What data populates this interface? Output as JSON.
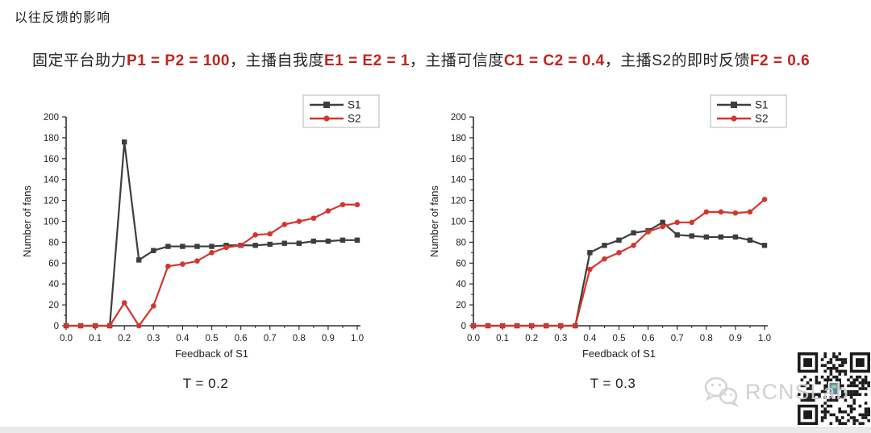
{
  "page": {
    "title": "以往反馈的影响"
  },
  "parameters": {
    "segments": [
      {
        "text": "固定平台助力"
      },
      {
        "text": "P1 = P2 = 100"
      },
      {
        "text": "，主播自我度"
      },
      {
        "text": "E1 = E2 = 1"
      },
      {
        "text": "，主播可信度"
      },
      {
        "text": "C1 = C2 = 0.4"
      },
      {
        "text": "，主播S2的即时反馈"
      },
      {
        "text": "F2 = 0.6"
      }
    ]
  },
  "chart_data": [
    {
      "type": "line",
      "caption": "T = 0.2",
      "xlabel": "Feedback of S1",
      "ylabel": "Number of fans",
      "xlim": [
        0,
        1
      ],
      "ylim": [
        0,
        200
      ],
      "grid": false,
      "legend_position": "top-right",
      "xticks": [
        0.0,
        0.1,
        0.2,
        0.3,
        0.4,
        0.5,
        0.6,
        0.7,
        0.8,
        0.9,
        1.0
      ],
      "xtick_labels": [
        "0.0",
        "0.1",
        "0.2",
        "0.3",
        "0.4",
        "0.5",
        "0.6",
        "0.7",
        "0.8",
        "0.9",
        "1.0"
      ],
      "yticks": [
        0,
        20,
        40,
        60,
        80,
        100,
        120,
        140,
        160,
        180,
        200
      ],
      "x": [
        0.0,
        0.05,
        0.1,
        0.15,
        0.2,
        0.25,
        0.3,
        0.35,
        0.4,
        0.45,
        0.5,
        0.55,
        0.6,
        0.65,
        0.7,
        0.75,
        0.8,
        0.85,
        0.9,
        0.95,
        1.0
      ],
      "series": [
        {
          "name": "S1",
          "color": "#3d3d3d",
          "marker": "square",
          "values": [
            0,
            0,
            0,
            0,
            176,
            63,
            72,
            76,
            76,
            76,
            76,
            77,
            77,
            77,
            78,
            79,
            79,
            81,
            81,
            82,
            82
          ]
        },
        {
          "name": "S2",
          "color": "#d3362d",
          "marker": "circle",
          "values": [
            0,
            0,
            0,
            0,
            22,
            0,
            19,
            57,
            59,
            62,
            70,
            75,
            77,
            87,
            88,
            97,
            100,
            103,
            110,
            116,
            116
          ]
        }
      ]
    },
    {
      "type": "line",
      "caption": "T = 0.3",
      "xlabel": "Feedback of S1",
      "ylabel": "Number of fans",
      "xlim": [
        0,
        1
      ],
      "ylim": [
        0,
        200
      ],
      "grid": false,
      "legend_position": "top-right",
      "xticks": [
        0.0,
        0.1,
        0.2,
        0.3,
        0.4,
        0.5,
        0.6,
        0.7,
        0.8,
        0.9,
        1.0
      ],
      "xtick_labels": [
        "0.0",
        "0.1",
        "0.2",
        "0.3",
        "0.4",
        "0.5",
        "0.6",
        "0.7",
        "0.8",
        "0.9",
        "1.0"
      ],
      "yticks": [
        0,
        20,
        40,
        60,
        80,
        100,
        120,
        140,
        160,
        180,
        200
      ],
      "x": [
        0.0,
        0.05,
        0.1,
        0.15,
        0.2,
        0.25,
        0.3,
        0.35,
        0.4,
        0.45,
        0.5,
        0.55,
        0.6,
        0.65,
        0.7,
        0.75,
        0.8,
        0.85,
        0.9,
        0.95,
        1.0
      ],
      "series": [
        {
          "name": "S1",
          "color": "#3d3d3d",
          "marker": "square",
          "values": [
            0,
            0,
            0,
            0,
            0,
            0,
            0,
            0,
            70,
            77,
            82,
            89,
            91,
            99,
            87,
            86,
            85,
            85,
            85,
            82,
            77
          ]
        },
        {
          "name": "S2",
          "color": "#d3362d",
          "marker": "circle",
          "values": [
            0,
            0,
            0,
            0,
            0,
            0,
            0,
            0,
            54,
            64,
            70,
            77,
            90,
            95,
            99,
            99,
            109,
            109,
            108,
            109,
            121
          ]
        }
      ]
    }
  ],
  "watermark": {
    "text": "RCNSLab",
    "icon": "wechat-icon"
  },
  "qr": {
    "name": "qr-code"
  }
}
